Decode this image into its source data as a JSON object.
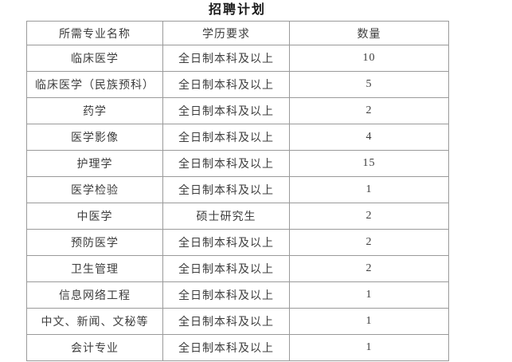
{
  "title": "招聘计划",
  "table": {
    "columns": [
      "所需专业名称",
      "学历要求",
      "数量"
    ],
    "rows": [
      {
        "major": "临床医学",
        "education": "全日制本科及以上",
        "count": "10"
      },
      {
        "major": "临床医学（民族预科）",
        "education": "全日制本科及以上",
        "count": "5"
      },
      {
        "major": "药学",
        "education": "全日制本科及以上",
        "count": "2"
      },
      {
        "major": "医学影像",
        "education": "全日制本科及以上",
        "count": "4"
      },
      {
        "major": "护理学",
        "education": "全日制本科及以上",
        "count": "15"
      },
      {
        "major": "医学检验",
        "education": "全日制本科及以上",
        "count": "1"
      },
      {
        "major": "中医学",
        "education": "硕士研究生",
        "count": "2"
      },
      {
        "major": "预防医学",
        "education": "全日制本科及以上",
        "count": "2"
      },
      {
        "major": "卫生管理",
        "education": "全日制本科及以上",
        "count": "2"
      },
      {
        "major": "信息网络工程",
        "education": "全日制本科及以上",
        "count": "1"
      },
      {
        "major": "中文、新闻、文秘等",
        "education": "全日制本科及以上",
        "count": "1"
      },
      {
        "major": "会计专业",
        "education": "全日制本科及以上",
        "count": "1"
      }
    ],
    "colors": {
      "title_text": "#1b1b1b",
      "cell_text": "#3d3d3d",
      "border": "#9a9a9a",
      "background": "#ffffff"
    }
  }
}
